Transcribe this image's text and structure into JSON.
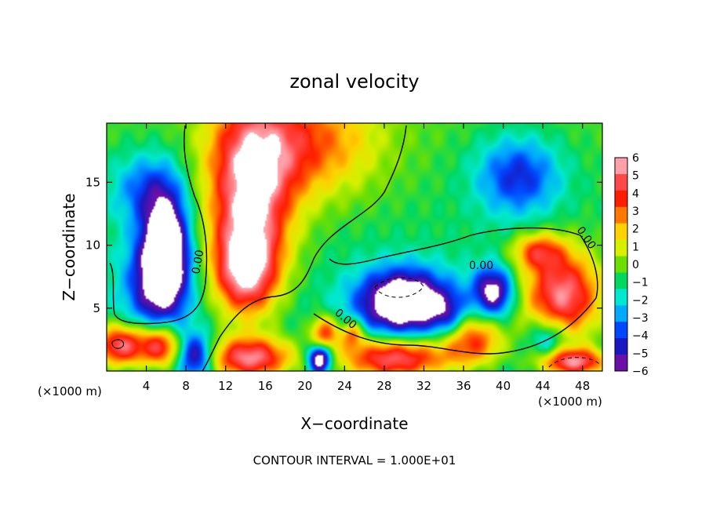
{
  "chart_data": {
    "type": "heatmap",
    "title": "zonal velocity",
    "xlabel": "X−coordinate",
    "ylabel": "Z−coordinate",
    "x_unit_left": "(×1000 m)",
    "x_unit_right": "(×1000 m)",
    "footer": "CONTOUR INTERVAL = 1.000E+01",
    "xlim": [
      0,
      50
    ],
    "ylim": [
      0,
      19.7
    ],
    "x_ticks": [
      4,
      8,
      12,
      16,
      20,
      24,
      28,
      32,
      36,
      40,
      44,
      48
    ],
    "y_ticks": [
      5,
      10,
      15
    ],
    "colorbar": {
      "range": [
        -6,
        6
      ],
      "ticks": [
        "6",
        "5",
        "4",
        "3",
        "2",
        "1",
        "0",
        "−1",
        "−2",
        "−3",
        "−4",
        "−5",
        "−6"
      ],
      "colors": [
        "#ffa0a8",
        "#ff4848",
        "#ff1e00",
        "#ff7800",
        "#ffd200",
        "#d6f000",
        "#6ee000",
        "#00d860",
        "#00e8d0",
        "#00aaff",
        "#0048ff",
        "#1a18c0",
        "#6a10a8"
      ]
    },
    "contour_labels": [
      "0.00",
      "0.00",
      "0.00",
      "0.00"
    ],
    "field_features": [
      {
        "x": 14.5,
        "z": 14,
        "value": 7,
        "sx": 3.0,
        "sz": 5
      },
      {
        "x": 14,
        "z": 8,
        "value": 6,
        "sx": 2.2,
        "sz": 2.5
      },
      {
        "x": 20,
        "z": 18,
        "value": 4,
        "sx": 5,
        "sz": 3
      },
      {
        "x": 6,
        "z": 10,
        "value": -7,
        "sx": 1.6,
        "sz": 3
      },
      {
        "x": 5,
        "z": 7,
        "value": -4.5,
        "sx": 2.2,
        "sz": 2.8
      },
      {
        "x": 4,
        "z": 14.5,
        "value": -3,
        "sx": 2.5,
        "sz": 2
      },
      {
        "x": 30,
        "z": 5.5,
        "value": -8,
        "sx": 3.2,
        "sz": 1.8
      },
      {
        "x": 39,
        "z": 6.3,
        "value": -6,
        "sx": 1.4,
        "sz": 1.4
      },
      {
        "x": 41.5,
        "z": 15.5,
        "value": -4,
        "sx": 3,
        "sz": 2.2
      },
      {
        "x": 46,
        "z": 6,
        "value": 7,
        "sx": 2.8,
        "sz": 2.5
      },
      {
        "x": 43.5,
        "z": 9.5,
        "value": 4,
        "sx": 1.8,
        "sz": 1
      },
      {
        "x": 37,
        "z": 2.5,
        "value": 5,
        "sx": 2.2,
        "sz": 1.5
      },
      {
        "x": 22,
        "z": 3,
        "value": 5,
        "sx": 1,
        "sz": 1
      },
      {
        "x": 24.8,
        "z": 3,
        "value": 4,
        "sx": 0.8,
        "sz": 0.8
      },
      {
        "x": 21.5,
        "z": 1,
        "value": -8,
        "sx": 0.8,
        "sz": 0.8
      },
      {
        "x": 1.5,
        "z": 2,
        "value": 7,
        "sx": 2,
        "sz": 1.2
      },
      {
        "x": 5.5,
        "z": 2,
        "value": 6,
        "sx": 1.4,
        "sz": 1.2
      },
      {
        "x": 14.5,
        "z": 1,
        "value": 7,
        "sx": 3,
        "sz": 1.2
      },
      {
        "x": 29,
        "z": 1,
        "value": 7,
        "sx": 4,
        "sz": 1.2
      },
      {
        "x": 47,
        "z": 0.7,
        "value": 7,
        "sx": 2.5,
        "sz": 0.8
      },
      {
        "x": 9,
        "z": 1.2,
        "value": -5,
        "sx": 1.2,
        "sz": 1.2
      },
      {
        "x": 34.5,
        "z": 4.5,
        "value": -2.5,
        "sx": 1.3,
        "sz": 1.2
      },
      {
        "x": 44.5,
        "z": 2.5,
        "value": -3,
        "sx": 1.3,
        "sz": 1.3
      }
    ]
  }
}
